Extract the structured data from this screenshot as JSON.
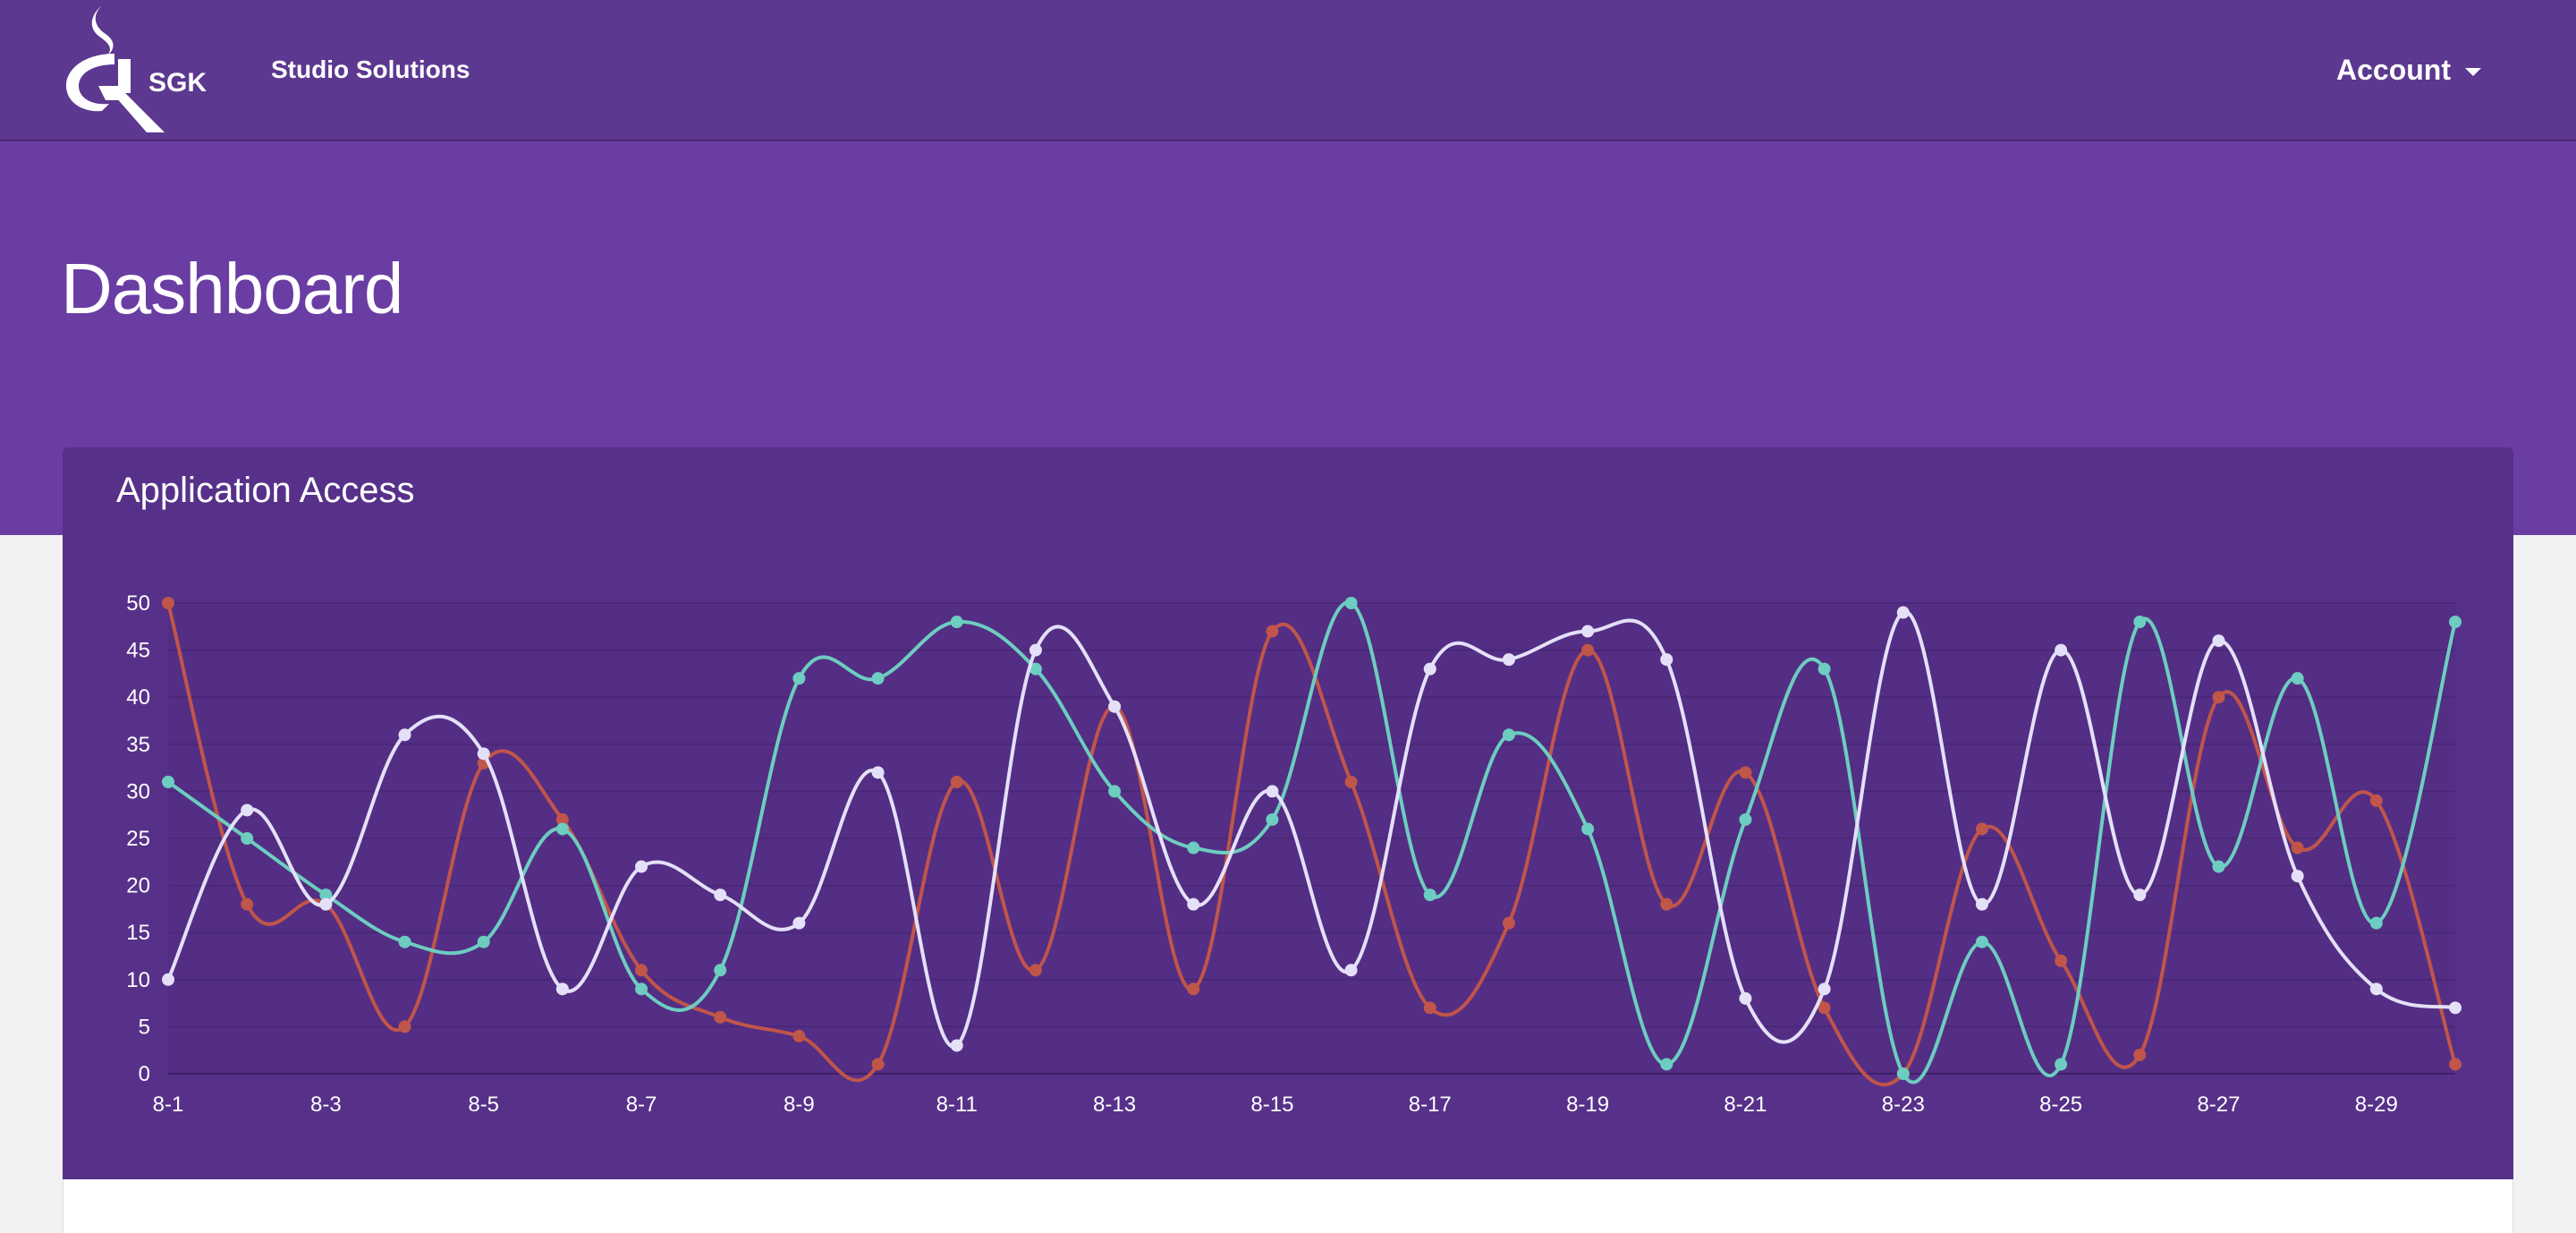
{
  "header": {
    "logo_alt": "SGK",
    "logo_text": "SGK",
    "brand_name": "Studio Solutions",
    "account_label": "Account"
  },
  "page": {
    "title": "Dashboard"
  },
  "panel": {
    "title": "Application Access"
  },
  "colors": {
    "navbar": "#5c3891",
    "hero": "#6a3da3",
    "panel": "#573189",
    "series_orange": "#c0554a",
    "series_teal": "#6dcdc0",
    "series_white": "#e4e0f8"
  },
  "chart_data": {
    "type": "line",
    "title": "Application Access",
    "xlabel": "",
    "ylabel": "",
    "ylim": [
      0,
      50
    ],
    "y_ticks": [
      0,
      5,
      10,
      15,
      20,
      25,
      30,
      35,
      40,
      45,
      50
    ],
    "grid": true,
    "legend": "none",
    "curve": "smooth",
    "x": [
      "8-1",
      "8-2",
      "8-3",
      "8-4",
      "8-5",
      "8-6",
      "8-7",
      "8-8",
      "8-9",
      "8-10",
      "8-11",
      "8-12",
      "8-13",
      "8-14",
      "8-15",
      "8-16",
      "8-17",
      "8-18",
      "8-19",
      "8-20",
      "8-21",
      "8-22",
      "8-23",
      "8-24",
      "8-25",
      "8-26",
      "8-27",
      "8-28",
      "8-29",
      "8-30"
    ],
    "x_tick_labels": [
      "8-1",
      "8-3",
      "8-5",
      "8-7",
      "8-9",
      "8-11",
      "8-13",
      "8-15",
      "8-17",
      "8-19",
      "8-21",
      "8-23",
      "8-25",
      "8-27",
      "8-29"
    ],
    "series": [
      {
        "color": "#c0554a",
        "values": [
          50,
          18,
          18,
          5,
          33,
          27,
          11,
          6,
          4,
          1,
          31,
          11,
          39,
          9,
          47,
          31,
          7,
          16,
          45,
          18,
          32,
          7,
          0,
          26,
          12,
          2,
          40,
          24,
          29,
          1
        ]
      },
      {
        "color": "#6dcdc0",
        "values": [
          31,
          25,
          19,
          14,
          14,
          26,
          9,
          11,
          42,
          42,
          48,
          43,
          30,
          24,
          27,
          50,
          19,
          36,
          26,
          1,
          27,
          43,
          0,
          14,
          1,
          48,
          22,
          42,
          16,
          48
        ]
      },
      {
        "color": "#e4e0f8",
        "values": [
          10,
          28,
          18,
          36,
          34,
          9,
          22,
          19,
          16,
          32,
          3,
          45,
          39,
          18,
          30,
          11,
          43,
          44,
          47,
          44,
          8,
          9,
          49,
          18,
          45,
          19,
          46,
          21,
          9,
          7
        ]
      }
    ]
  }
}
